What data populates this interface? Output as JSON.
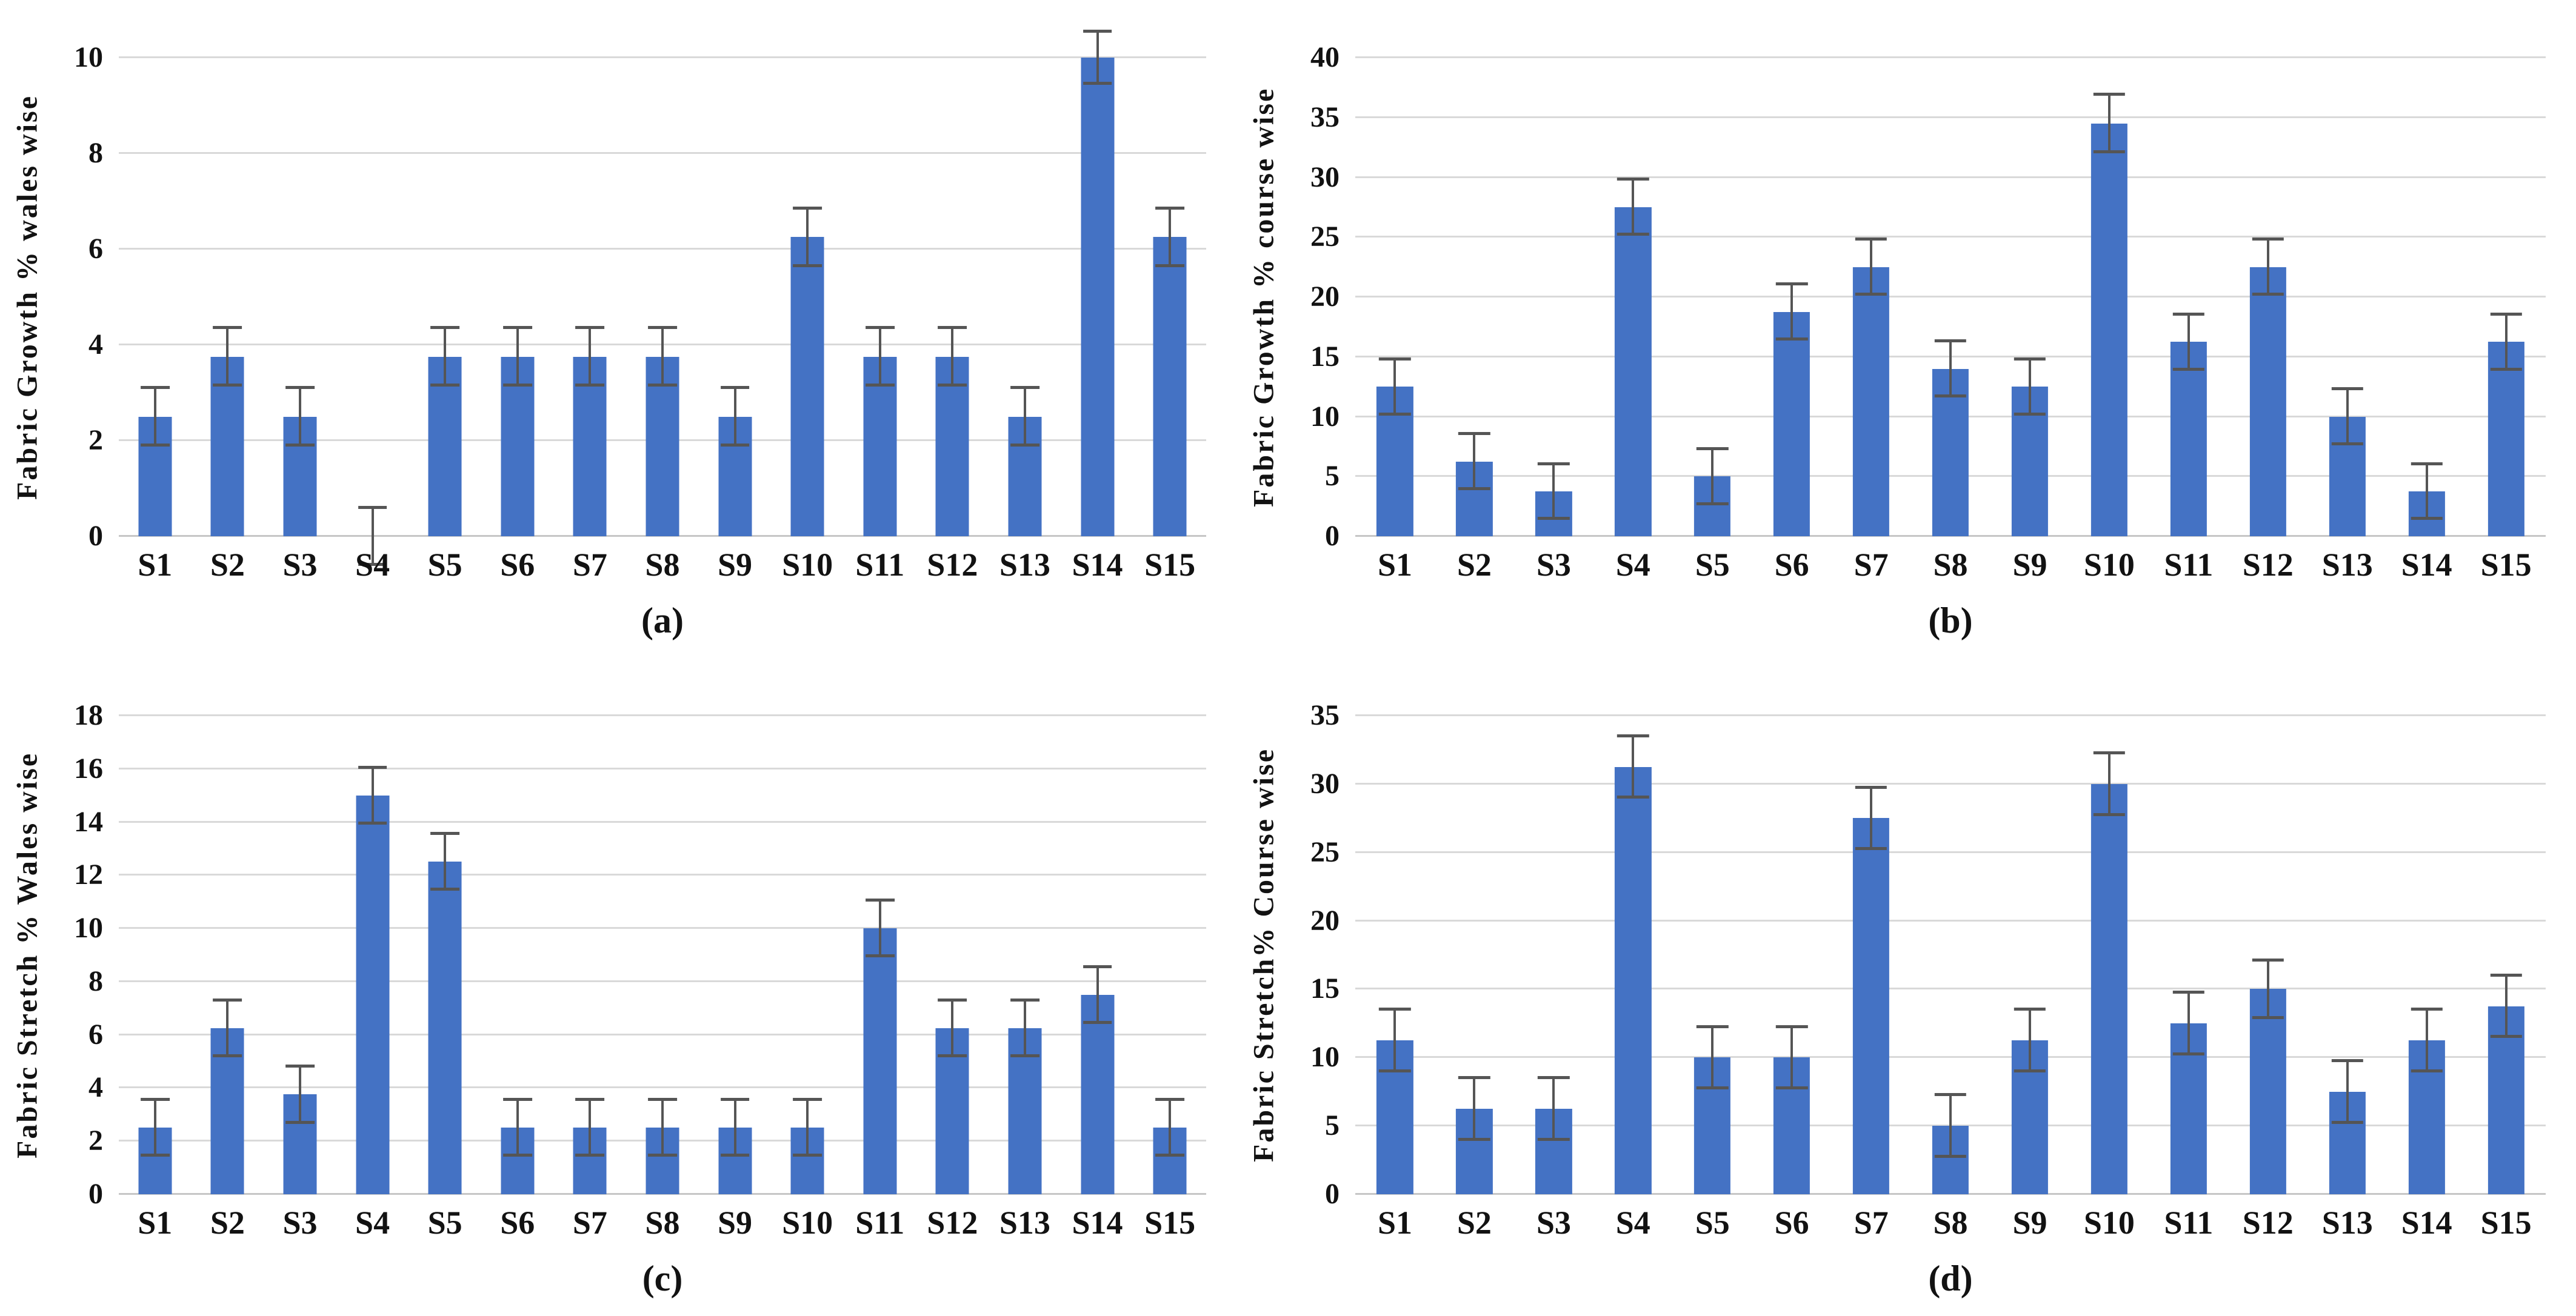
{
  "colors": {
    "bar": "#4472C4",
    "error_bar": "#555555",
    "gridline": "#D9D9D9",
    "axis_line": "#C6C6C6",
    "text": "#121212",
    "background": "#FFFFFF"
  },
  "chart_data": [
    {
      "type": "bar",
      "caption": "(a)",
      "ylabel": "Fabric Growth % wales wise",
      "xlabel": "",
      "categories": [
        "S1",
        "S2",
        "S3",
        "S4",
        "S5",
        "S6",
        "S7",
        "S8",
        "S9",
        "S10",
        "S11",
        "S12",
        "S13",
        "S14",
        "S15"
      ],
      "values": [
        2.5,
        3.75,
        2.5,
        0,
        3.75,
        3.75,
        3.75,
        3.75,
        2.5,
        6.25,
        3.75,
        3.75,
        2.5,
        10,
        6.25
      ],
      "errors": [
        0.6,
        0.6,
        0.6,
        0.6,
        0.6,
        0.6,
        0.6,
        0.6,
        0.6,
        0.6,
        0.6,
        0.6,
        0.6,
        0.55,
        0.6
      ],
      "ylim": [
        0,
        10
      ],
      "ytick_step": 2,
      "grid": true,
      "legend": "none"
    },
    {
      "type": "bar",
      "caption": "(b)",
      "ylabel": "Fabric Growth % course wise",
      "xlabel": "",
      "categories": [
        "S1",
        "S2",
        "S3",
        "S4",
        "S5",
        "S6",
        "S7",
        "S8",
        "S9",
        "S10",
        "S11",
        "S12",
        "S13",
        "S14",
        "S15"
      ],
      "values": [
        12.5,
        6.25,
        3.75,
        27.5,
        5,
        18.75,
        22.5,
        14,
        12.5,
        34.5,
        16.25,
        22.5,
        10,
        3.75,
        16.25
      ],
      "errors": [
        2.3,
        2.3,
        2.3,
        2.3,
        2.3,
        2.3,
        2.3,
        2.3,
        2.3,
        2.4,
        2.3,
        2.3,
        2.3,
        2.3,
        2.3
      ],
      "ylim": [
        0,
        40
      ],
      "ytick_step": 5,
      "grid": true,
      "legend": "none"
    },
    {
      "type": "bar",
      "caption": "(c)",
      "ylabel": "Fabric Stretch % Wales wise",
      "xlabel": "",
      "categories": [
        "S1",
        "S2",
        "S3",
        "S4",
        "S5",
        "S6",
        "S7",
        "S8",
        "S9",
        "S10",
        "S11",
        "S12",
        "S13",
        "S14",
        "S15"
      ],
      "values": [
        2.5,
        6.25,
        3.75,
        15,
        12.5,
        2.5,
        2.5,
        2.5,
        2.5,
        2.5,
        10,
        6.25,
        6.25,
        7.5,
        2.5
      ],
      "errors": [
        1.05,
        1.05,
        1.05,
        1.05,
        1.05,
        1.05,
        1.05,
        1.05,
        1.05,
        1.05,
        1.05,
        1.05,
        1.05,
        1.05,
        1.05
      ],
      "ylim": [
        0,
        18
      ],
      "ytick_step": 2,
      "grid": true,
      "legend": "none"
    },
    {
      "type": "bar",
      "caption": "(d)",
      "ylabel": "Fabric Stretch% Course wise",
      "xlabel": "",
      "categories": [
        "S1",
        "S2",
        "S3",
        "S4",
        "S5",
        "S6",
        "S7",
        "S8",
        "S9",
        "S10",
        "S11",
        "S12",
        "S13",
        "S14",
        "S15"
      ],
      "values": [
        11.25,
        6.25,
        6.25,
        31.25,
        10,
        10,
        27.5,
        5,
        11.25,
        30,
        12.5,
        15,
        7.5,
        11.25,
        13.75
      ],
      "errors": [
        2.25,
        2.25,
        2.25,
        2.25,
        2.25,
        2.25,
        2.25,
        2.25,
        2.25,
        2.25,
        2.25,
        2.1,
        2.25,
        2.25,
        2.25
      ],
      "ylim": [
        0,
        35
      ],
      "ytick_step": 5,
      "grid": true,
      "legend": "none"
    }
  ]
}
